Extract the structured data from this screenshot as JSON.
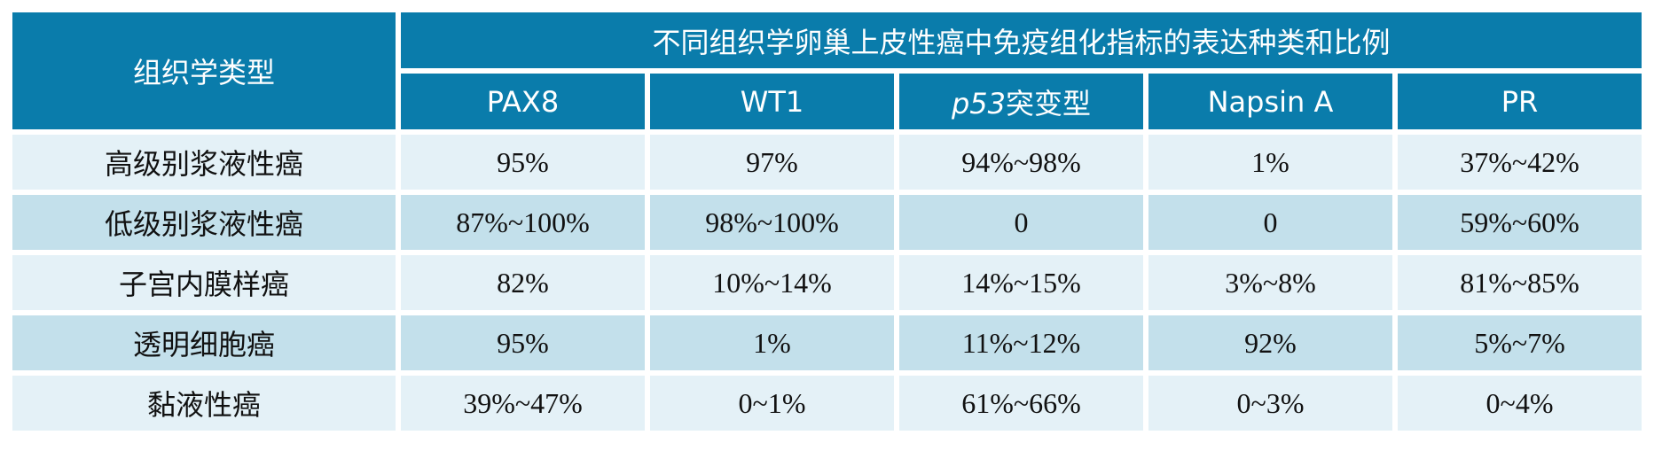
{
  "table": {
    "row_header": "组织学类型",
    "group_header": "不同组织学卵巢上皮性癌中免疫组化指标的表达种类和比例",
    "columns": [
      "PAX8",
      "WT1",
      {
        "italic": "p53",
        "rest": "突变型"
      },
      "Napsin A",
      "PR"
    ],
    "rows": [
      [
        "高级别浆液性癌",
        "95%",
        "97%",
        "94%~98%",
        "1%",
        "37%~42%"
      ],
      [
        "低级别浆液性癌",
        "87%~100%",
        "98%~100%",
        "0",
        "0",
        "59%~60%"
      ],
      [
        "子宫内膜样癌",
        "82%",
        "10%~14%",
        "14%~15%",
        "3%~8%",
        "81%~85%"
      ],
      [
        "透明细胞癌",
        "95%",
        "1%",
        "11%~12%",
        "92%",
        "5%~7%"
      ],
      [
        "黏液性癌",
        "39%~47%",
        "0~1%",
        "61%~66%",
        "0~3%",
        "0~4%"
      ]
    ]
  }
}
